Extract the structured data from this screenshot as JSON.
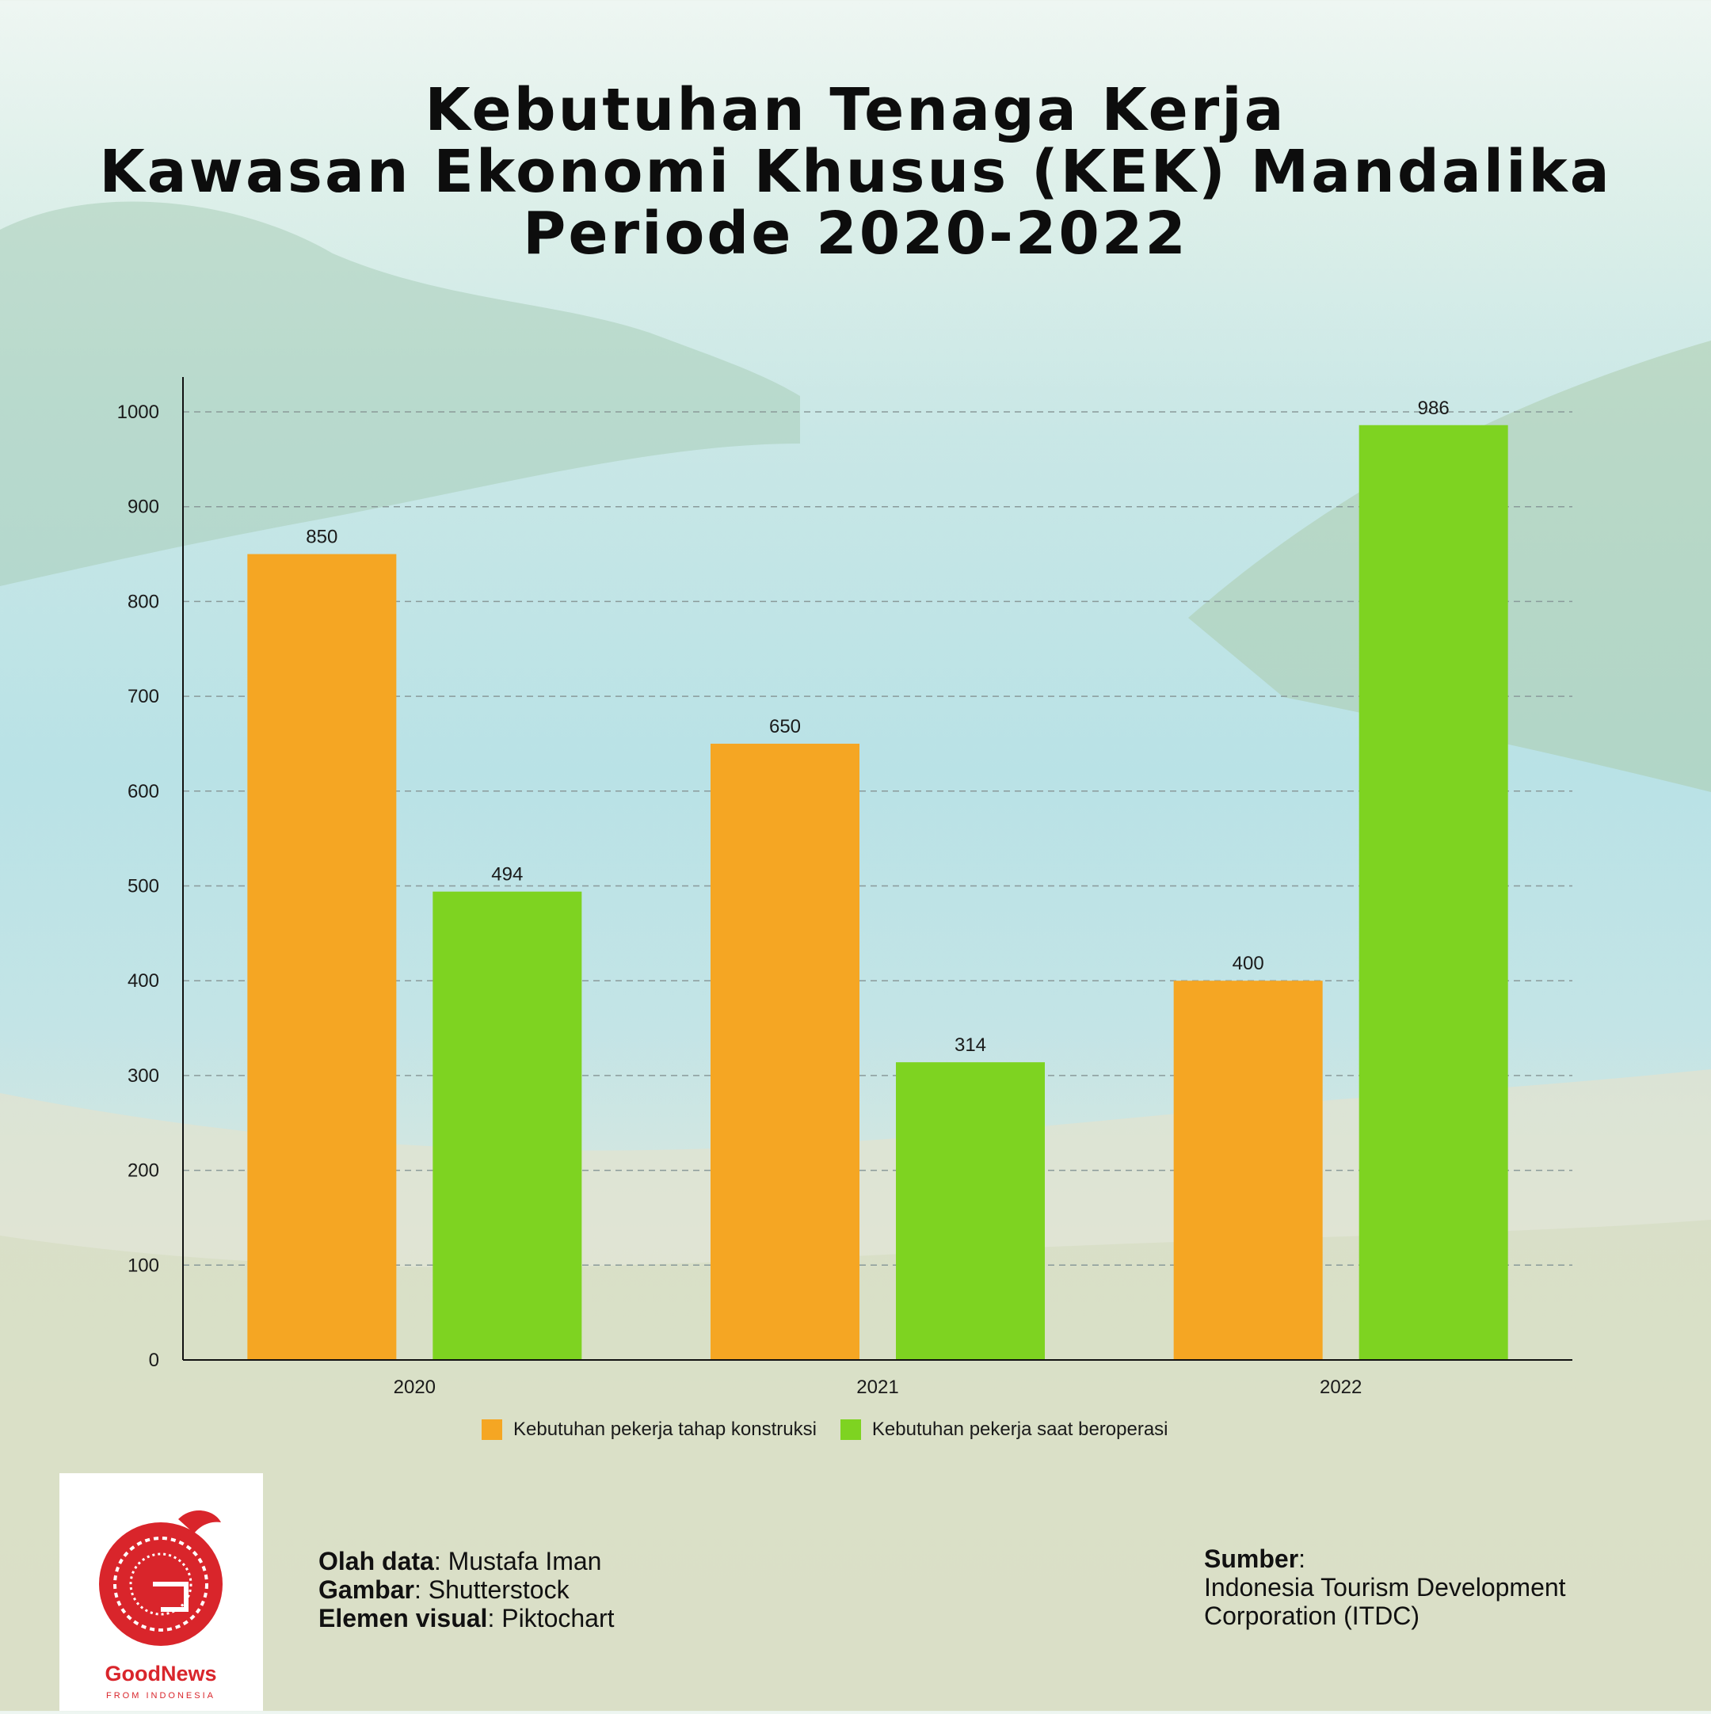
{
  "title_lines": [
    "Kebutuhan Tenaga Kerja",
    "Kawasan Ekonomi Khusus (KEK) Mandalika",
    "Periode 2020-2022"
  ],
  "colors": {
    "construction": "#f5a623",
    "operation": "#7ed321",
    "brand_red": "#d9252b"
  },
  "chart_data": {
    "type": "bar",
    "title": "Kebutuhan Tenaga Kerja Kawasan Ekonomi Khusus (KEK) Mandalika Periode 2020-2022",
    "categories": [
      "2020",
      "2021",
      "2022"
    ],
    "series": [
      {
        "name": "Kebutuhan pekerja tahap konstruksi",
        "values": [
          850,
          650,
          400
        ]
      },
      {
        "name": "Kebutuhan pekerja saat beroperasi",
        "values": [
          494,
          314,
          986
        ]
      }
    ],
    "ylim": [
      0,
      1000
    ],
    "yticks": [
      0,
      100,
      200,
      300,
      400,
      500,
      600,
      700,
      800,
      900,
      1000
    ],
    "grid": true,
    "legend_position": "bottom"
  },
  "legend": {
    "construction": "Kebutuhan pekerja tahap konstruksi",
    "operation": "Kebutuhan pekerja saat beroperasi"
  },
  "credits": {
    "data_label": "Olah data",
    "data_value": ": Mustafa Iman",
    "image_label": "Gambar",
    "image_value": ": Shutterstock",
    "visual_label": "Elemen visual",
    "visual_value": ": Piktochart"
  },
  "source": {
    "label": "Sumber",
    "colon": ":",
    "line1": "Indonesia Tourism Development",
    "line2": "Corporation (ITDC)"
  },
  "logo": {
    "name": "GoodNews",
    "tagline": "FROM INDONESIA"
  }
}
